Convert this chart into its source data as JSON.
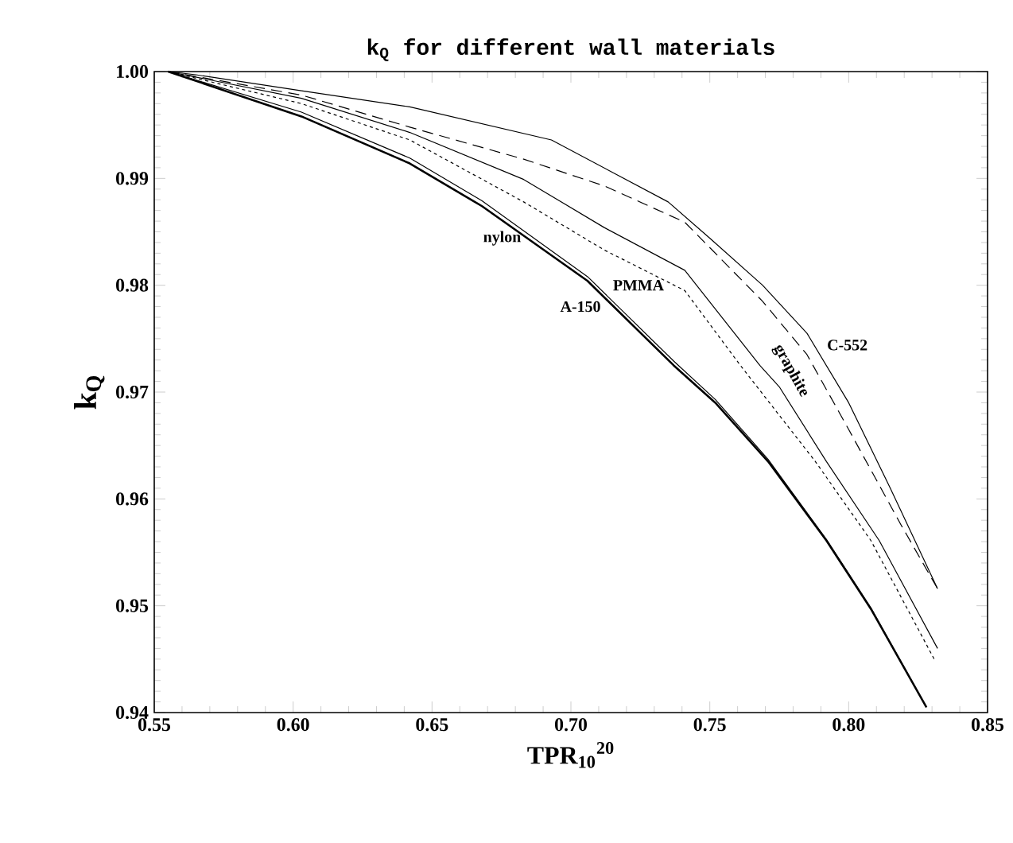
{
  "chart_data": {
    "type": "line",
    "title": "k$_{Q}$ for different wall materials",
    "xlabel": "TPR$_{10}$$^{20}$",
    "ylabel": "k$_{Q}$",
    "xlim": [
      0.55,
      0.85
    ],
    "ylim": [
      0.94,
      1.0
    ],
    "xticks": [
      0.55,
      {
        "value": 0.6,
        "label": "0.60"
      },
      0.65,
      {
        "value": 0.7,
        "label": "0.70"
      },
      0.75,
      {
        "value": 0.8,
        "label": "0.80"
      },
      0.85
    ],
    "yticks": [
      0.94,
      0.95,
      0.96,
      0.97,
      0.98,
      0.99,
      {
        "value": 1.0,
        "label": "1.00"
      }
    ],
    "grid": false,
    "legend": false,
    "series": [
      {
        "name": "C-552",
        "color": "#000000",
        "line_style": "solid",
        "x": [
          0.555,
          0.565,
          0.603,
          0.642,
          0.693,
          0.735,
          0.75,
          0.769,
          0.785,
          0.8,
          0.815,
          0.832
        ],
        "values": [
          1.0,
          0.9997,
          0.9982,
          0.9967,
          0.9936,
          0.9878,
          0.9844,
          0.98,
          0.9755,
          0.969,
          0.961,
          0.9516
        ]
      },
      {
        "name": "graphite",
        "color": "#000000",
        "line_style": "dashed",
        "x": [
          0.555,
          0.603,
          0.642,
          0.683,
          0.712,
          0.741,
          0.769,
          0.785,
          0.8,
          0.819,
          0.832
        ],
        "values": [
          1.0,
          0.9978,
          0.9948,
          0.9918,
          0.9893,
          0.9859,
          0.9785,
          0.9735,
          0.9665,
          0.9575,
          0.9516
        ]
      },
      {
        "color": "#000000",
        "line_style": "solid",
        "x": [
          0.555,
          0.603,
          0.642,
          0.683,
          0.712,
          0.741,
          0.768,
          0.775,
          0.792,
          0.811,
          0.832
        ],
        "values": [
          1.0,
          0.9975,
          0.9943,
          0.9899,
          0.9854,
          0.9814,
          0.9725,
          0.9705,
          0.9635,
          0.9561,
          0.946
        ]
      },
      {
        "name": "PMMA",
        "color": "#000000",
        "line_style": "dotted",
        "x": [
          0.555,
          0.603,
          0.642,
          0.683,
          0.712,
          0.741,
          0.761,
          0.788,
          0.808,
          0.831
        ],
        "values": [
          1.0,
          0.997,
          0.9936,
          0.9878,
          0.9833,
          0.9795,
          0.9725,
          0.9635,
          0.9561,
          0.9449
        ]
      },
      {
        "name": "nylon",
        "color": "#000000",
        "line_style": "solid",
        "x": [
          0.555,
          0.603,
          0.642,
          0.668,
          0.706,
          0.737,
          0.752,
          0.771,
          0.792,
          0.808,
          0.828
        ],
        "values": [
          1.0,
          0.9962,
          0.9919,
          0.9879,
          0.9808,
          0.9729,
          0.9693,
          0.9637,
          0.9562,
          0.9498,
          0.9405
        ]
      },
      {
        "name": "A-150",
        "color": "#000000",
        "line_style": "solid",
        "x": [
          0.555,
          0.603,
          0.642,
          0.668,
          0.706,
          0.737,
          0.752,
          0.771,
          0.792,
          0.808,
          0.828
        ],
        "values": [
          1.0,
          0.9958,
          0.9914,
          0.9874,
          0.9804,
          0.9725,
          0.969,
          0.9635,
          0.9561,
          0.9497,
          0.9405
        ]
      }
    ]
  }
}
